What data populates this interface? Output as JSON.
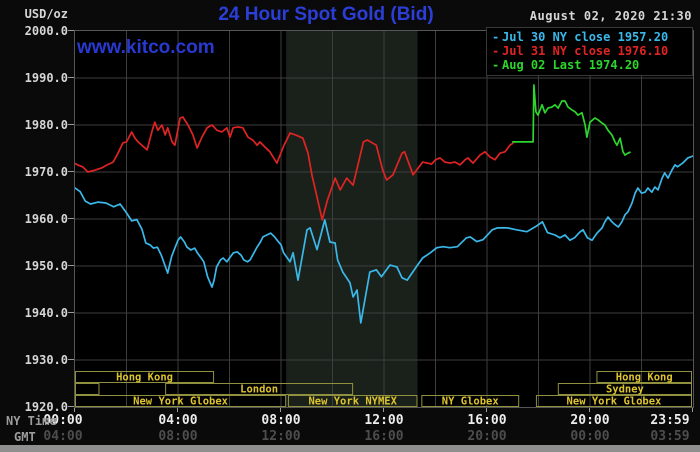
{
  "header": {
    "unit_label": "USD/oz",
    "title": "24 Hour Spot Gold (Bid)",
    "timestamp": "August 02, 2020 21:30",
    "watermark": "www.kitco.com"
  },
  "legend": [
    {
      "label": "Jul 30 NY close 1957.20",
      "color": "#3bb8ea"
    },
    {
      "label": "Jul 31 NY close 1976.10",
      "color": "#e02424"
    },
    {
      "label": "Aug 02 Last 1974.20",
      "color": "#2dd62d"
    }
  ],
  "axes": {
    "ny_time_label": "NY Time",
    "gmt_label": "GMT"
  },
  "chart_data": {
    "type": "line",
    "title": "24 Hour Spot Gold (Bid)",
    "ylabel": "USD/oz",
    "ylim": [
      1920,
      2000
    ],
    "ytick_step": 10,
    "xlim_hours": [
      0,
      24
    ],
    "grid": true,
    "legend_position": "top-right",
    "nymex_band_hours": [
      8.2,
      13.3
    ],
    "colors": {
      "grid": "#3e3e3e",
      "frame": "#565656",
      "band": "#1a211a",
      "session_border": "#90903e",
      "session_text": "#ddc42e"
    },
    "x_ticks": {
      "hours": [
        0,
        4,
        8,
        12,
        16,
        20,
        23.983
      ],
      "ny_time": [
        "00:00",
        "04:00",
        "08:00",
        "12:00",
        "16:00",
        "20:00",
        "23:59"
      ],
      "gmt": [
        "04:00",
        "08:00",
        "12:00",
        "16:00",
        "20:00",
        "00:00",
        "03:59"
      ]
    },
    "sessions": [
      {
        "row": 0,
        "label": "Hong Kong",
        "start": 0,
        "end": 5.4
      },
      {
        "row": 0,
        "label": "Hong Kong",
        "start": 20.25,
        "end": 24
      },
      {
        "row": 1,
        "label": "",
        "start": 0,
        "end": 0.95
      },
      {
        "row": 1,
        "label": "London",
        "start": 3.5,
        "end": 10.8
      },
      {
        "row": 1,
        "label": "Sydney",
        "start": 18.75,
        "end": 24
      },
      {
        "row": 2,
        "label": "New York Globex",
        "start": 0,
        "end": 8.2
      },
      {
        "row": 2,
        "label": "New York NYMEX",
        "start": 8.27,
        "end": 13.3
      },
      {
        "row": 2,
        "label": "NY Globex",
        "start": 13.45,
        "end": 17.25
      },
      {
        "row": 2,
        "label": "New York Globex",
        "start": 17.9,
        "end": 24
      }
    ],
    "series": [
      {
        "name": "jul-30",
        "label": "Jul 30",
        "color": "#3bb8ea",
        "close": 1957.2,
        "points": [
          [
            0,
            1966.6
          ],
          [
            0.2,
            1965.8
          ],
          [
            0.4,
            1963.8
          ],
          [
            0.6,
            1963.2
          ],
          [
            0.9,
            1963.6
          ],
          [
            1.2,
            1963.4
          ],
          [
            1.5,
            1962.6
          ],
          [
            1.75,
            1963.2
          ],
          [
            2.0,
            1961.3
          ],
          [
            2.2,
            1959.6
          ],
          [
            2.4,
            1959.9
          ],
          [
            2.6,
            1957.8
          ],
          [
            2.75,
            1954.9
          ],
          [
            2.91,
            1954.5
          ],
          [
            3.05,
            1953.8
          ],
          [
            3.2,
            1954.0
          ],
          [
            3.35,
            1952.3
          ],
          [
            3.6,
            1948.5
          ],
          [
            3.75,
            1952.0
          ],
          [
            3.85,
            1953.4
          ],
          [
            4.0,
            1955.5
          ],
          [
            4.1,
            1956.2
          ],
          [
            4.25,
            1955.1
          ],
          [
            4.35,
            1954.0
          ],
          [
            4.5,
            1953.4
          ],
          [
            4.65,
            1953.8
          ],
          [
            4.75,
            1952.8
          ],
          [
            4.9,
            1951.7
          ],
          [
            5.0,
            1950.9
          ],
          [
            5.15,
            1947.7
          ],
          [
            5.25,
            1946.4
          ],
          [
            5.32,
            1945.5
          ],
          [
            5.4,
            1947.0
          ],
          [
            5.5,
            1949.8
          ],
          [
            5.65,
            1951.3
          ],
          [
            5.75,
            1951.7
          ],
          [
            5.9,
            1950.9
          ],
          [
            6.0,
            1951.7
          ],
          [
            6.15,
            1952.8
          ],
          [
            6.3,
            1953.0
          ],
          [
            6.45,
            1952.3
          ],
          [
            6.55,
            1951.3
          ],
          [
            6.7,
            1950.9
          ],
          [
            6.8,
            1951.3
          ],
          [
            6.9,
            1952.3
          ],
          [
            7.05,
            1953.8
          ],
          [
            7.2,
            1955.1
          ],
          [
            7.3,
            1956.2
          ],
          [
            7.45,
            1956.6
          ],
          [
            7.6,
            1957.0
          ],
          [
            7.75,
            1956.2
          ],
          [
            7.85,
            1955.5
          ],
          [
            8.0,
            1954.5
          ],
          [
            8.1,
            1952.8
          ],
          [
            8.35,
            1950.9
          ],
          [
            8.47,
            1952.8
          ],
          [
            8.66,
            1947.0
          ],
          [
            9.01,
            1957.7
          ],
          [
            9.13,
            1958.1
          ],
          [
            9.4,
            1953.5
          ],
          [
            9.7,
            1959.8
          ],
          [
            9.9,
            1955.1
          ],
          [
            10.1,
            1954.9
          ],
          [
            10.2,
            1951.3
          ],
          [
            10.4,
            1948.7
          ],
          [
            10.68,
            1946.4
          ],
          [
            10.8,
            1943.4
          ],
          [
            10.95,
            1944.9
          ],
          [
            11.1,
            1937.9
          ],
          [
            11.45,
            1948.7
          ],
          [
            11.7,
            1949.2
          ],
          [
            11.9,
            1947.7
          ],
          [
            12.23,
            1950.2
          ],
          [
            12.5,
            1949.8
          ],
          [
            12.7,
            1947.5
          ],
          [
            12.9,
            1947.0
          ],
          [
            13.3,
            1950.2
          ],
          [
            13.5,
            1951.7
          ],
          [
            13.8,
            1952.8
          ],
          [
            14.05,
            1953.9
          ],
          [
            14.3,
            1954.1
          ],
          [
            14.55,
            1953.9
          ],
          [
            14.85,
            1954.1
          ],
          [
            15.2,
            1956.0
          ],
          [
            15.35,
            1956.2
          ],
          [
            15.6,
            1955.2
          ],
          [
            15.85,
            1955.6
          ],
          [
            16.2,
            1957.7
          ],
          [
            16.4,
            1958.1
          ],
          [
            16.8,
            1958.1
          ],
          [
            17.15,
            1957.7
          ],
          [
            17.55,
            1957.3
          ],
          [
            17.95,
            1958.6
          ],
          [
            18.15,
            1959.4
          ],
          [
            18.35,
            1957.1
          ],
          [
            18.64,
            1956.6
          ],
          [
            18.83,
            1956.0
          ],
          [
            19.03,
            1956.6
          ],
          [
            19.22,
            1955.5
          ],
          [
            19.4,
            1956.0
          ],
          [
            19.6,
            1957.2
          ],
          [
            19.73,
            1957.7
          ],
          [
            19.9,
            1956.0
          ],
          [
            20.08,
            1955.5
          ],
          [
            20.27,
            1957.0
          ],
          [
            20.47,
            1958.1
          ],
          [
            20.58,
            1959.4
          ],
          [
            20.7,
            1960.4
          ],
          [
            20.85,
            1959.4
          ],
          [
            20.97,
            1958.8
          ],
          [
            21.1,
            1958.3
          ],
          [
            21.24,
            1959.4
          ],
          [
            21.36,
            1960.9
          ],
          [
            21.47,
            1961.5
          ],
          [
            21.63,
            1963.4
          ],
          [
            21.75,
            1965.5
          ],
          [
            21.86,
            1966.6
          ],
          [
            22.0,
            1965.5
          ],
          [
            22.14,
            1965.7
          ],
          [
            22.25,
            1966.6
          ],
          [
            22.4,
            1965.7
          ],
          [
            22.52,
            1966.8
          ],
          [
            22.64,
            1966.2
          ],
          [
            22.8,
            1968.7
          ],
          [
            22.9,
            1969.8
          ],
          [
            23.03,
            1968.7
          ],
          [
            23.18,
            1970.4
          ],
          [
            23.3,
            1971.5
          ],
          [
            23.4,
            1971.1
          ],
          [
            23.6,
            1971.9
          ],
          [
            23.8,
            1973.0
          ],
          [
            24,
            1973.4
          ]
        ]
      },
      {
        "name": "jul-31",
        "label": "Jul 31",
        "color": "#e02424",
        "close": 1976.1,
        "points": [
          [
            0,
            1971.8
          ],
          [
            0.1,
            1971.5
          ],
          [
            0.3,
            1971.1
          ],
          [
            0.5,
            1970.0
          ],
          [
            0.78,
            1970.4
          ],
          [
            1.05,
            1970.9
          ],
          [
            1.25,
            1971.5
          ],
          [
            1.48,
            1972.1
          ],
          [
            1.67,
            1974.0
          ],
          [
            1.86,
            1976.2
          ],
          [
            2.0,
            1976.4
          ],
          [
            2.2,
            1978.5
          ],
          [
            2.33,
            1977.2
          ],
          [
            2.45,
            1976.4
          ],
          [
            2.8,
            1974.7
          ],
          [
            3.0,
            1978.9
          ],
          [
            3.1,
            1980.6
          ],
          [
            3.22,
            1978.9
          ],
          [
            3.38,
            1980.0
          ],
          [
            3.5,
            1977.9
          ],
          [
            3.6,
            1979.4
          ],
          [
            3.77,
            1976.4
          ],
          [
            3.88,
            1975.7
          ],
          [
            4.08,
            1981.5
          ],
          [
            4.19,
            1981.7
          ],
          [
            4.39,
            1980.0
          ],
          [
            4.58,
            1977.9
          ],
          [
            4.74,
            1975.1
          ],
          [
            4.93,
            1977.4
          ],
          [
            5.13,
            1979.4
          ],
          [
            5.32,
            1980.0
          ],
          [
            5.51,
            1978.9
          ],
          [
            5.7,
            1978.5
          ],
          [
            5.9,
            1979.4
          ],
          [
            6.02,
            1977.4
          ],
          [
            6.14,
            1979.4
          ],
          [
            6.33,
            1979.6
          ],
          [
            6.52,
            1979.4
          ],
          [
            6.72,
            1977.4
          ],
          [
            6.9,
            1976.8
          ],
          [
            7.07,
            1975.7
          ],
          [
            7.18,
            1976.4
          ],
          [
            7.38,
            1975.3
          ],
          [
            7.57,
            1974.3
          ],
          [
            7.84,
            1971.9
          ],
          [
            8.1,
            1975.5
          ],
          [
            8.35,
            1978.3
          ],
          [
            8.6,
            1977.8
          ],
          [
            8.85,
            1977.2
          ],
          [
            9.05,
            1974.0
          ],
          [
            9.2,
            1969.4
          ],
          [
            9.4,
            1964.7
          ],
          [
            9.6,
            1959.8
          ],
          [
            9.8,
            1964.0
          ],
          [
            10.1,
            1968.7
          ],
          [
            10.3,
            1966.2
          ],
          [
            10.55,
            1968.7
          ],
          [
            10.8,
            1967.2
          ],
          [
            11.2,
            1976.4
          ],
          [
            11.35,
            1976.8
          ],
          [
            11.7,
            1975.7
          ],
          [
            11.95,
            1970.4
          ],
          [
            12.1,
            1968.3
          ],
          [
            12.35,
            1969.4
          ],
          [
            12.7,
            1974.0
          ],
          [
            12.8,
            1974.3
          ],
          [
            13.13,
            1969.4
          ],
          [
            13.5,
            1972.1
          ],
          [
            13.85,
            1971.7
          ],
          [
            14.0,
            1972.6
          ],
          [
            14.17,
            1973.0
          ],
          [
            14.37,
            1972.1
          ],
          [
            14.56,
            1971.9
          ],
          [
            14.76,
            1972.1
          ],
          [
            14.95,
            1971.5
          ],
          [
            15.15,
            1972.6
          ],
          [
            15.26,
            1973.0
          ],
          [
            15.46,
            1971.9
          ],
          [
            15.73,
            1973.6
          ],
          [
            15.92,
            1974.3
          ],
          [
            16.12,
            1973.2
          ],
          [
            16.31,
            1972.6
          ],
          [
            16.5,
            1974.0
          ],
          [
            16.7,
            1974.3
          ],
          [
            16.89,
            1975.7
          ],
          [
            17.0,
            1976.1
          ]
        ]
      },
      {
        "name": "aug-02",
        "label": "Aug 02",
        "color": "#2dd62d",
        "last": 1974.2,
        "points": [
          [
            17.0,
            1976.4
          ],
          [
            17.79,
            1976.4
          ],
          [
            17.82,
            1988.5
          ],
          [
            17.9,
            1982.8
          ],
          [
            17.98,
            1982.1
          ],
          [
            18.14,
            1984.3
          ],
          [
            18.25,
            1982.6
          ],
          [
            18.37,
            1983.6
          ],
          [
            18.52,
            1983.8
          ],
          [
            18.64,
            1984.3
          ],
          [
            18.76,
            1983.6
          ],
          [
            18.91,
            1985.1
          ],
          [
            19.03,
            1985.1
          ],
          [
            19.15,
            1983.8
          ],
          [
            19.3,
            1983.2
          ],
          [
            19.42,
            1982.8
          ],
          [
            19.53,
            1982.1
          ],
          [
            19.69,
            1982.6
          ],
          [
            19.81,
            1980.0
          ],
          [
            19.88,
            1977.4
          ],
          [
            20.0,
            1980.6
          ],
          [
            20.19,
            1981.5
          ],
          [
            20.31,
            1981.1
          ],
          [
            20.47,
            1980.4
          ],
          [
            20.58,
            1980.0
          ],
          [
            20.7,
            1978.9
          ],
          [
            20.85,
            1977.9
          ],
          [
            20.97,
            1976.4
          ],
          [
            21.05,
            1975.7
          ],
          [
            21.17,
            1977.2
          ],
          [
            21.28,
            1974.3
          ],
          [
            21.36,
            1973.6
          ],
          [
            21.47,
            1974.0
          ],
          [
            21.55,
            1974.2
          ]
        ]
      }
    ]
  }
}
